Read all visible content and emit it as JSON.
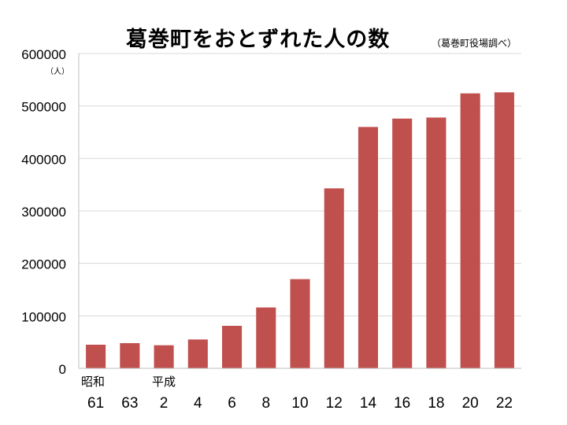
{
  "chart_data": {
    "type": "bar",
    "title": "葛巻町をおとずれた人の数",
    "source_note": "（葛巻町役場調べ）",
    "unit_label": "（人）",
    "era_labels": {
      "showa": "昭和",
      "heisei": "平成"
    },
    "categories": [
      "61",
      "63",
      "2",
      "4",
      "6",
      "8",
      "10",
      "12",
      "14",
      "16",
      "18",
      "20",
      "22"
    ],
    "values": [
      45000,
      48000,
      44000,
      55000,
      81000,
      116000,
      170000,
      343000,
      460000,
      476000,
      478000,
      524000,
      526000
    ],
    "y_ticks": [
      "0",
      "100000",
      "200000",
      "300000",
      "400000",
      "500000",
      "600000"
    ],
    "ylim": [
      0,
      600000
    ],
    "grid": true,
    "bar_color": "#c0504d",
    "grid_color": "#d9d9d9"
  }
}
